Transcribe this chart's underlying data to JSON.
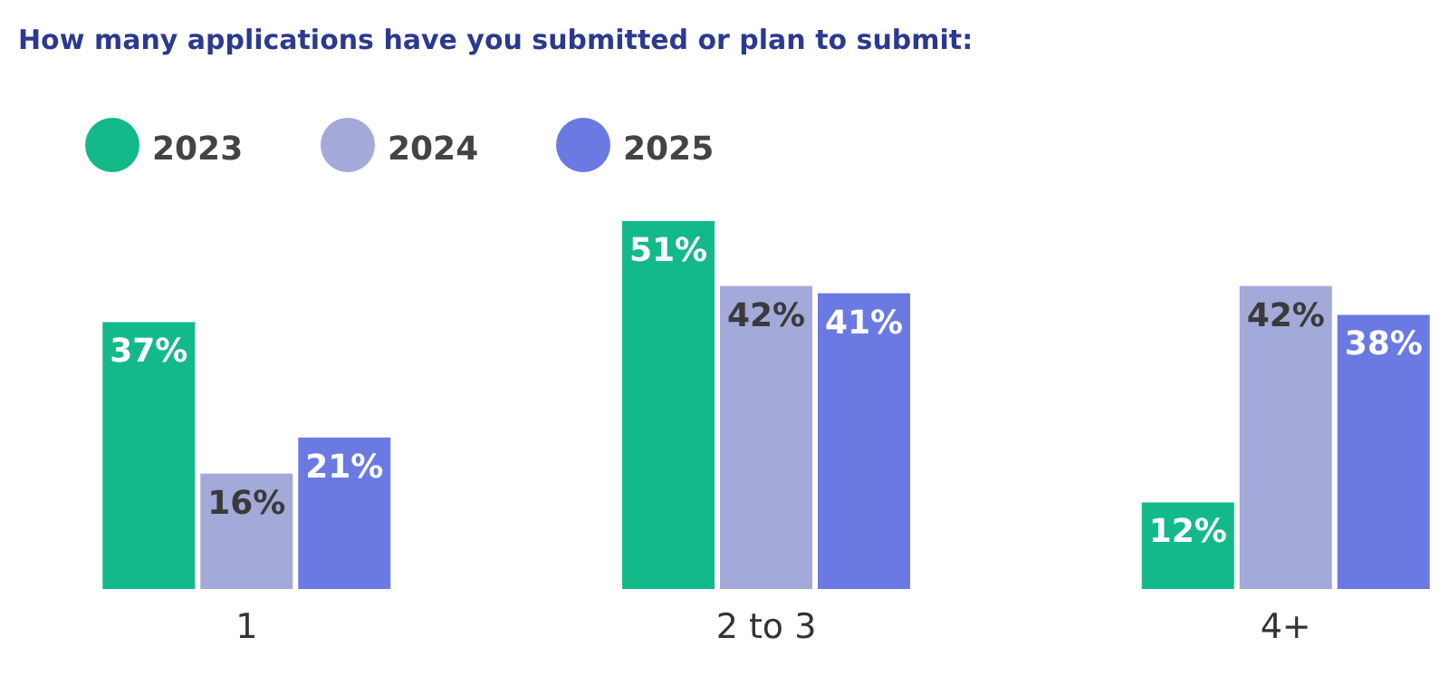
{
  "chart_data": {
    "type": "bar",
    "title": "How many applications have you submitted or plan to submit:",
    "categories": [
      "1",
      "2 to 3",
      "4+"
    ],
    "series": [
      {
        "name": "2023",
        "color": "#14b98a",
        "values": [
          37,
          51,
          12
        ],
        "value_labels": [
          "37%",
          "51%",
          "12%"
        ]
      },
      {
        "name": "2024",
        "color": "#a3aad9",
        "values": [
          16,
          42,
          42
        ],
        "value_labels": [
          "16%",
          "42%",
          "42%"
        ]
      },
      {
        "name": "2025",
        "color": "#6b79e3",
        "values": [
          21,
          41,
          38
        ],
        "value_labels": [
          "21%",
          "41%",
          "38%"
        ]
      }
    ],
    "legend": "top left",
    "grid": false
  }
}
